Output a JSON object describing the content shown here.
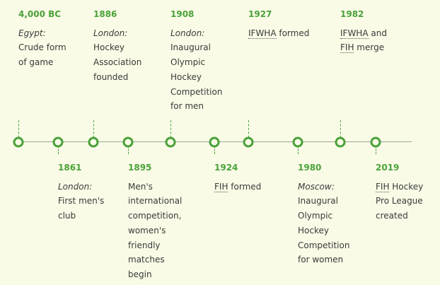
{
  "events": [
    {
      "year": "4,000 BC",
      "place": "Egypt:",
      "lines": [
        "Crude form",
        "of game"
      ]
    },
    {
      "year": "1861",
      "place": "London:",
      "lines": [
        "First men's",
        "club"
      ]
    },
    {
      "year": "1886",
      "place": "London:",
      "lines": [
        "Hockey",
        "Association",
        "founded"
      ]
    },
    {
      "year": "1895",
      "place": "",
      "lines": [
        "Men's",
        "international",
        "competition,",
        "women's",
        "friendly",
        "matches",
        "begin"
      ]
    },
    {
      "year": "1908",
      "place": "London:",
      "lines": [
        "Inaugural",
        "Olympic",
        "Hockey",
        "Competition",
        "for men"
      ]
    },
    {
      "year": "1924",
      "abbr": "FIH",
      "lines": [
        " formed"
      ]
    },
    {
      "year": "1927",
      "abbr": "IFWHA",
      "lines": [
        " formed"
      ]
    },
    {
      "year": "1980",
      "place": "Moscow:",
      "lines": [
        "Inaugural",
        "Olympic",
        "Hockey",
        "Competition",
        "for women"
      ]
    },
    {
      "year": "1982",
      "abbr": "IFWHA",
      "mid": " and",
      "abbr2": "FIH",
      "lines": [
        " merge"
      ]
    },
    {
      "year": "2019",
      "abbr": "FIH",
      "lines": [
        " Hockey",
        "Pro League",
        "created"
      ]
    }
  ],
  "colors": {
    "accent": "#4aa13a",
    "background": "#f9fbe6",
    "text": "#3a3a3a"
  }
}
